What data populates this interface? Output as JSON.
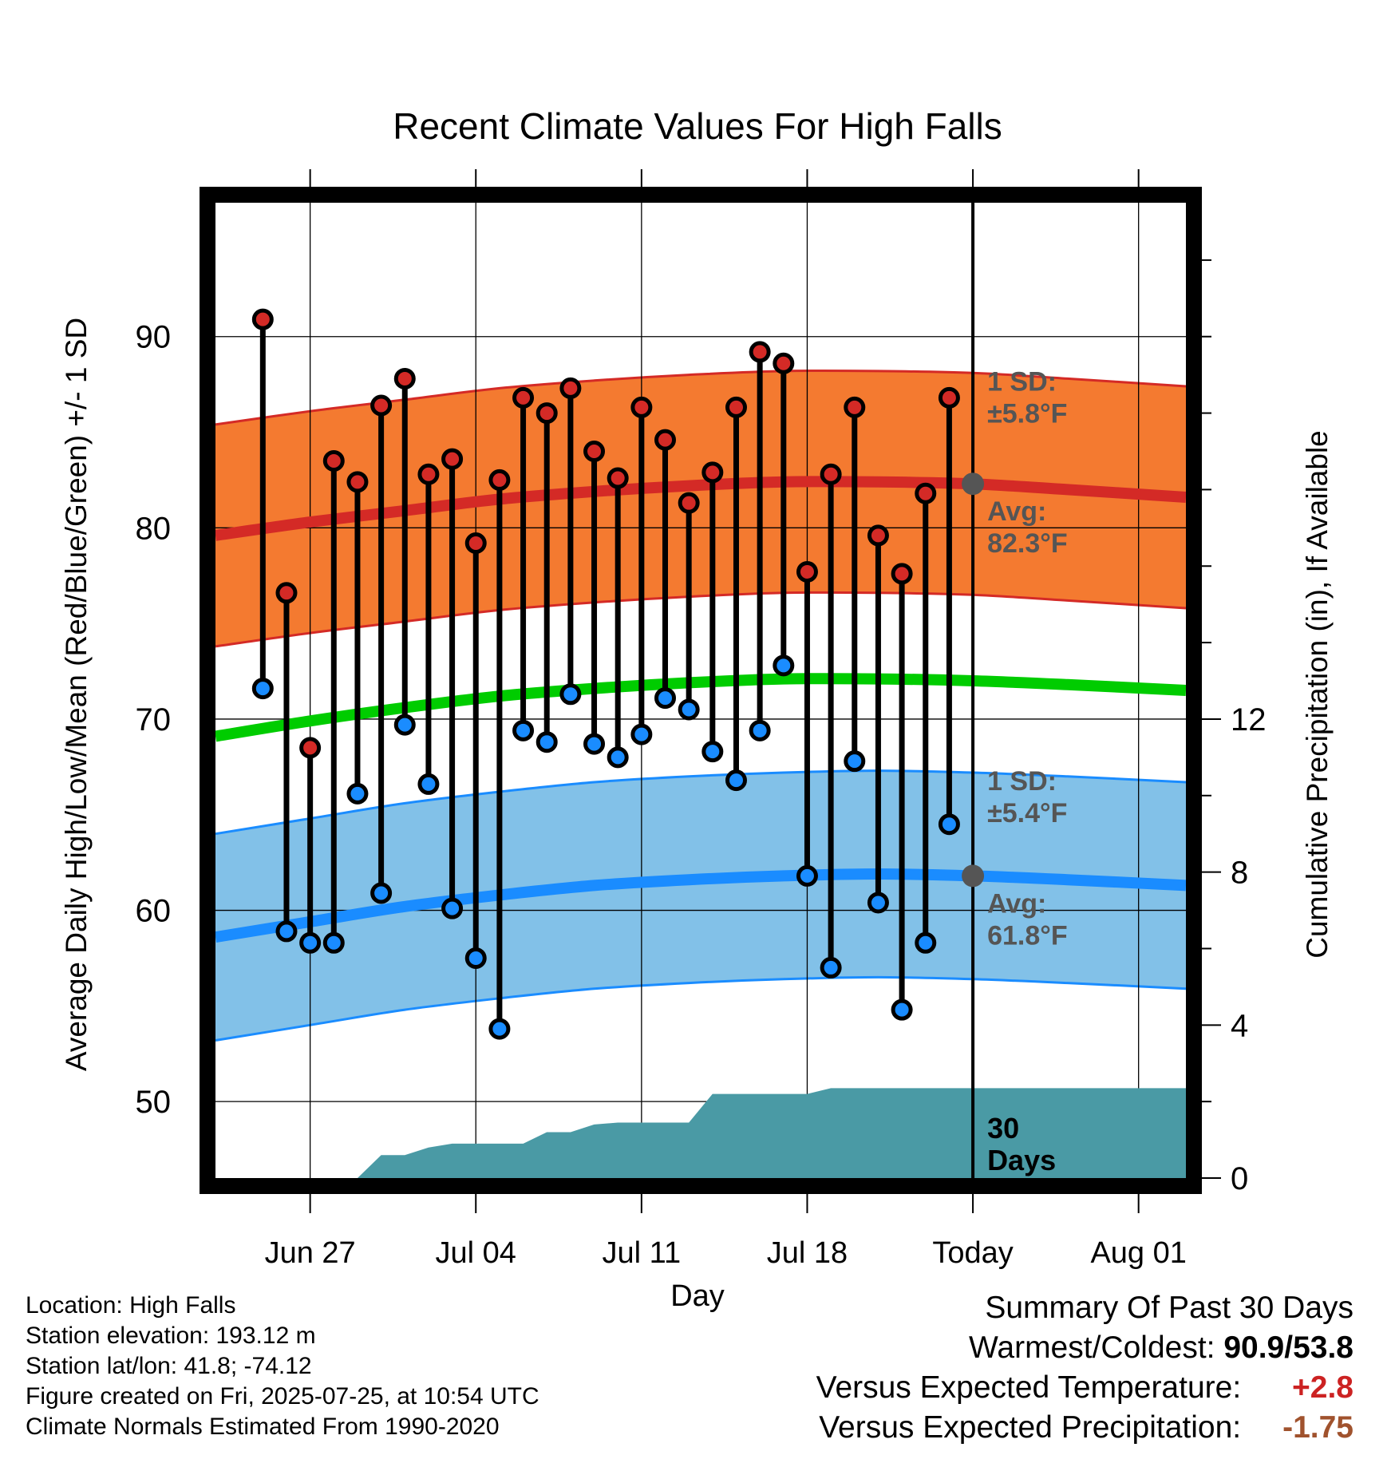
{
  "chart_data": {
    "type": "line",
    "title": "Recent Climate Values For High Falls",
    "xlabel": "Day",
    "ylabel": "Average Daily High/Low/Mean (Red/Blue/Green) +/- 1 SD",
    "y2label": "Cumulative Precipitation (in), If Available",
    "ylim": [
      46,
      97
    ],
    "y2lim": [
      0,
      25.5
    ],
    "yticks": [
      50,
      60,
      70,
      80,
      90
    ],
    "y2ticks": [
      0,
      4,
      8,
      12
    ],
    "xticks": [
      {
        "label": "Jun 27",
        "date": "2025-06-27"
      },
      {
        "label": "Jul 04",
        "date": "2025-07-04"
      },
      {
        "label": "Jul 11",
        "date": "2025-07-11"
      },
      {
        "label": "Jul 18",
        "date": "2025-07-18"
      },
      {
        "label": "Today",
        "date": "2025-07-25"
      },
      {
        "label": "Aug 01",
        "date": "2025-08-01"
      }
    ],
    "xlim": [
      "2025-06-23",
      "2025-08-03"
    ],
    "today": "2025-07-25",
    "grid": true,
    "daily": {
      "dates": [
        "2025-06-25",
        "2025-06-26",
        "2025-06-27",
        "2025-06-28",
        "2025-06-29",
        "2025-06-30",
        "2025-07-01",
        "2025-07-02",
        "2025-07-03",
        "2025-07-04",
        "2025-07-05",
        "2025-07-06",
        "2025-07-07",
        "2025-07-08",
        "2025-07-09",
        "2025-07-10",
        "2025-07-11",
        "2025-07-12",
        "2025-07-13",
        "2025-07-14",
        "2025-07-15",
        "2025-07-16",
        "2025-07-17",
        "2025-07-18",
        "2025-07-19",
        "2025-07-20",
        "2025-07-21",
        "2025-07-22",
        "2025-07-23",
        "2025-07-24"
      ],
      "highs": [
        90.9,
        76.6,
        68.5,
        83.5,
        82.4,
        86.4,
        87.8,
        82.8,
        83.6,
        79.2,
        82.5,
        86.8,
        86.0,
        87.3,
        84.0,
        82.6,
        86.3,
        84.6,
        81.3,
        82.9,
        86.3,
        89.2,
        88.6,
        77.7,
        82.8,
        86.3,
        79.6,
        77.6,
        81.8,
        86.8
      ],
      "lows": [
        71.6,
        58.9,
        58.3,
        58.3,
        66.1,
        60.9,
        69.7,
        66.6,
        60.1,
        57.5,
        53.8,
        69.4,
        68.8,
        71.3,
        68.7,
        68.0,
        69.2,
        71.1,
        70.5,
        68.3,
        66.8,
        69.4,
        72.8,
        61.8,
        57.0,
        67.8,
        60.4,
        54.8,
        58.3,
        64.5
      ]
    },
    "normals": {
      "dates": [
        "2025-06-23",
        "2025-06-27",
        "2025-07-01",
        "2025-07-05",
        "2025-07-09",
        "2025-07-13",
        "2025-07-17",
        "2025-07-21",
        "2025-07-25",
        "2025-07-29",
        "2025-08-03"
      ],
      "high_mean": [
        79.6,
        80.3,
        80.9,
        81.5,
        81.9,
        82.2,
        82.4,
        82.4,
        82.3,
        82.0,
        81.6
      ],
      "high_sd": 5.8,
      "low_mean": [
        58.6,
        59.4,
        60.2,
        60.8,
        61.3,
        61.6,
        61.8,
        61.9,
        61.8,
        61.6,
        61.3
      ],
      "low_sd": 5.4,
      "mean": [
        69.1,
        69.9,
        70.6,
        71.2,
        71.6,
        71.9,
        72.1,
        72.1,
        72.0,
        71.8,
        71.5
      ]
    },
    "precip": {
      "dates": [
        "2025-06-23",
        "2025-06-29",
        "2025-06-30",
        "2025-07-01",
        "2025-07-02",
        "2025-07-03",
        "2025-07-06",
        "2025-07-07",
        "2025-07-08",
        "2025-07-09",
        "2025-07-10",
        "2025-07-13",
        "2025-07-14",
        "2025-07-18",
        "2025-07-19",
        "2025-07-25",
        "2025-08-03"
      ],
      "cumulative": [
        0,
        0,
        0.6,
        0.6,
        0.8,
        0.9,
        0.9,
        1.2,
        1.2,
        1.4,
        1.45,
        1.45,
        2.2,
        2.2,
        2.35,
        2.35,
        2.35
      ]
    },
    "annotations": {
      "high_sd_label": "1 SD:",
      "high_sd_value": "±5.8°F",
      "high_avg_label": "Avg:",
      "high_avg_value": "82.3°F",
      "low_sd_label": "1 SD:",
      "low_sd_value": "±5.4°F",
      "low_avg_label": "Avg:",
      "low_avg_value": "61.8°F",
      "window_number": "30",
      "window_unit": "Days"
    },
    "colors": {
      "high_band": "#f47a30",
      "high_line": "#d42a26",
      "low_band": "#82c1e8",
      "low_line": "#1a8cff",
      "mean_line": "#00cc00",
      "precip": "#4a9aa5",
      "high_dot": "#d42a26",
      "low_dot": "#1a8cff",
      "annotation": "#555555"
    }
  },
  "footer": {
    "location": "Location: High Falls",
    "elevation": "Station elevation: 193.12 m",
    "latlon": "Station lat/lon: 41.8; -74.12",
    "created": "Figure created on Fri, 2025-07-25, at 10:54 UTC",
    "normals_source": "Climate Normals Estimated From 1990-2020"
  },
  "summary": {
    "heading": "Summary Of Past 30 Days",
    "warm_label": "Warmest/Coldest:",
    "warm_value": "90.9/53.8",
    "temp_label": "Versus Expected Temperature:",
    "temp_value": "+2.8",
    "precip_label": "Versus Expected Precipitation:",
    "precip_value": "-1.75"
  }
}
